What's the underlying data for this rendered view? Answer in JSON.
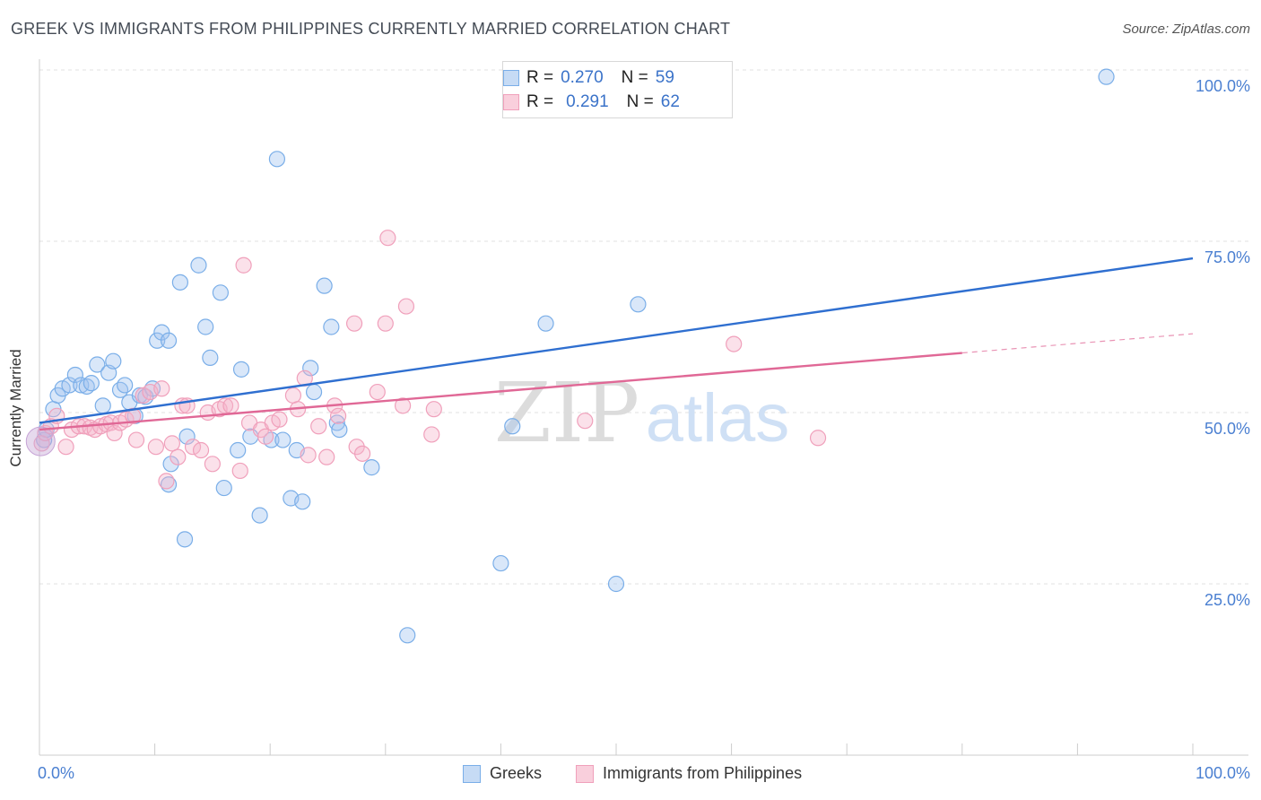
{
  "title": "GREEK VS IMMIGRANTS FROM PHILIPPINES CURRENTLY MARRIED CORRELATION CHART",
  "source": "Source: ZipAtlas.com",
  "watermark": {
    "zip": "ZIP",
    "atlas": "atlas"
  },
  "stats": [
    {
      "r_label": "R =",
      "r_value": "0.270",
      "n_label": "N =",
      "n_value": "59",
      "color": "#7aaee8"
    },
    {
      "r_label": "R =",
      "r_value": "0.291",
      "n_label": "N =",
      "n_value": "62",
      "color": "#f0a0bb"
    }
  ],
  "legend": [
    {
      "label": "Greeks",
      "color": "#7aaee8"
    },
    {
      "label": "Immigrants from Philippines",
      "color": "#f0a0bb"
    }
  ],
  "chart_data": {
    "type": "scatter",
    "title": "GREEK VS IMMIGRANTS FROM PHILIPPINES CURRENTLY MARRIED CORRELATION CHART",
    "xlabel": "",
    "ylabel": "Currently Married",
    "xlim": [
      0,
      100
    ],
    "ylim": [
      0,
      100
    ],
    "x_tick_labels": [
      "0.0%",
      "100.0%"
    ],
    "y_ticks": [
      25,
      50,
      75,
      100
    ],
    "y_tick_labels": [
      "25.0%",
      "50.0%",
      "75.0%",
      "100.0%"
    ],
    "grid": true,
    "legend_position": "bottom",
    "series": [
      {
        "name": "Greeks",
        "color": "#7aaee8",
        "line_color": "#2f6fd0",
        "trend": {
          "x": [
            0,
            100
          ],
          "y": [
            48.5,
            72.5
          ]
        },
        "points": [
          [
            0.4,
            46.0
          ],
          [
            0.6,
            47.5
          ],
          [
            1.2,
            50.5
          ],
          [
            1.6,
            52.5
          ],
          [
            2.0,
            53.5
          ],
          [
            2.6,
            54.0
          ],
          [
            3.1,
            55.5
          ],
          [
            3.6,
            54.0
          ],
          [
            4.1,
            53.8
          ],
          [
            4.5,
            54.3
          ],
          [
            5.0,
            57.0
          ],
          [
            5.5,
            51.0
          ],
          [
            6.0,
            55.8
          ],
          [
            6.4,
            57.5
          ],
          [
            7.0,
            53.3
          ],
          [
            7.4,
            54.0
          ],
          [
            7.8,
            51.5
          ],
          [
            8.3,
            49.5
          ],
          [
            8.7,
            52.5
          ],
          [
            9.2,
            52.3
          ],
          [
            9.8,
            53.5
          ],
          [
            10.2,
            60.5
          ],
          [
            10.6,
            61.7
          ],
          [
            11.2,
            60.5
          ],
          [
            11.4,
            42.5
          ],
          [
            11.2,
            39.5
          ],
          [
            12.2,
            69.0
          ],
          [
            12.8,
            46.5
          ],
          [
            12.6,
            31.5
          ],
          [
            13.8,
            71.5
          ],
          [
            14.4,
            62.5
          ],
          [
            14.8,
            58.0
          ],
          [
            15.7,
            67.5
          ],
          [
            16.0,
            39.0
          ],
          [
            17.2,
            44.5
          ],
          [
            17.5,
            56.3
          ],
          [
            18.3,
            46.5
          ],
          [
            19.1,
            35.0
          ],
          [
            20.1,
            46.0
          ],
          [
            20.6,
            87.0
          ],
          [
            21.1,
            46.0
          ],
          [
            21.8,
            37.5
          ],
          [
            22.3,
            44.5
          ],
          [
            22.8,
            37.0
          ],
          [
            23.5,
            56.5
          ],
          [
            23.8,
            53.0
          ],
          [
            24.7,
            68.5
          ],
          [
            25.3,
            62.5
          ],
          [
            25.8,
            48.5
          ],
          [
            26.0,
            47.5
          ],
          [
            28.8,
            42.0
          ],
          [
            31.9,
            17.5
          ],
          [
            40.0,
            28.0
          ],
          [
            41.0,
            48.0
          ],
          [
            43.9,
            63.0
          ],
          [
            50.0,
            25.0
          ],
          [
            51.9,
            65.8
          ],
          [
            55.5,
            100.0
          ],
          [
            92.5,
            99.0
          ]
        ]
      },
      {
        "name": "Immigrants from Philippines",
        "color": "#f0a0bb",
        "line_color": "#e06896",
        "trend": {
          "x": [
            0,
            80
          ],
          "y": [
            47.5,
            58.7
          ]
        },
        "trend_dashed": {
          "x": [
            80,
            100
          ],
          "y": [
            58.7,
            61.5
          ]
        },
        "points": [
          [
            0.2,
            45.5
          ],
          [
            0.5,
            47.0
          ],
          [
            1.0,
            48.0
          ],
          [
            1.5,
            49.5
          ],
          [
            2.3,
            45.0
          ],
          [
            2.8,
            47.5
          ],
          [
            3.4,
            48.0
          ],
          [
            3.9,
            48.0
          ],
          [
            4.4,
            47.8
          ],
          [
            4.8,
            47.5
          ],
          [
            5.3,
            48.0
          ],
          [
            5.8,
            48.3
          ],
          [
            6.2,
            48.5
          ],
          [
            6.5,
            47.0
          ],
          [
            7.0,
            48.5
          ],
          [
            7.5,
            49.0
          ],
          [
            8.1,
            49.5
          ],
          [
            8.4,
            46.0
          ],
          [
            9.0,
            52.5
          ],
          [
            9.6,
            53.0
          ],
          [
            10.1,
            45.0
          ],
          [
            10.6,
            53.5
          ],
          [
            11.0,
            40.0
          ],
          [
            11.5,
            45.5
          ],
          [
            12.0,
            43.5
          ],
          [
            12.4,
            51.0
          ],
          [
            12.8,
            51.0
          ],
          [
            13.3,
            45.0
          ],
          [
            14.0,
            44.5
          ],
          [
            14.6,
            50.0
          ],
          [
            15.0,
            42.5
          ],
          [
            15.6,
            50.5
          ],
          [
            16.1,
            51.0
          ],
          [
            16.6,
            51.0
          ],
          [
            17.4,
            41.5
          ],
          [
            17.7,
            71.5
          ],
          [
            18.2,
            48.5
          ],
          [
            19.2,
            47.5
          ],
          [
            19.6,
            46.5
          ],
          [
            20.2,
            48.5
          ],
          [
            20.8,
            49.0
          ],
          [
            22.0,
            52.5
          ],
          [
            22.4,
            50.5
          ],
          [
            23.0,
            55.0
          ],
          [
            23.3,
            43.8
          ],
          [
            24.2,
            48.0
          ],
          [
            24.9,
            43.5
          ],
          [
            25.6,
            51.0
          ],
          [
            25.9,
            49.5
          ],
          [
            27.3,
            63.0
          ],
          [
            27.5,
            45.0
          ],
          [
            28.0,
            44.0
          ],
          [
            29.3,
            53.0
          ],
          [
            30.0,
            63.0
          ],
          [
            30.2,
            75.5
          ],
          [
            31.5,
            51.0
          ],
          [
            31.8,
            65.5
          ],
          [
            34.0,
            46.8
          ],
          [
            34.2,
            50.5
          ],
          [
            47.3,
            48.8
          ],
          [
            60.2,
            60.0
          ],
          [
            67.5,
            46.3
          ]
        ]
      }
    ]
  }
}
